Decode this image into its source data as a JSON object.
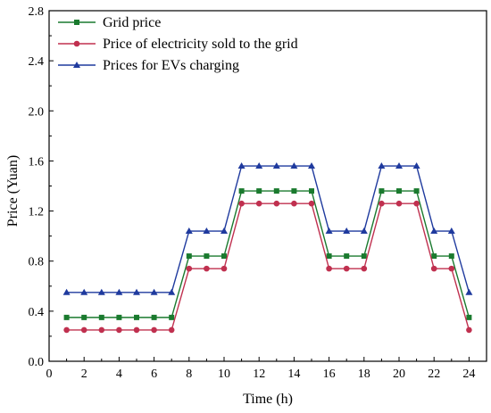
{
  "chart_data": {
    "type": "line",
    "xlabel": "Time (h)",
    "ylabel": "Price (Yuan)",
    "xlim": [
      0,
      25
    ],
    "ylim": [
      0,
      2.8
    ],
    "xticks": [
      0,
      2,
      4,
      6,
      8,
      10,
      12,
      14,
      16,
      18,
      20,
      22,
      24
    ],
    "xtick_labels": [
      "0",
      "2",
      "4",
      "6",
      "8",
      "10",
      "12",
      "14",
      "16",
      "18",
      "20",
      "22",
      "24"
    ],
    "yticks": [
      0,
      0.4,
      0.8,
      1.2,
      1.6,
      2.0,
      2.4,
      2.8
    ],
    "ytick_labels": [
      "0.0",
      "0.4",
      "0.8",
      "1.2",
      "1.6",
      "2.0",
      "2.4",
      "2.8"
    ],
    "grid": false,
    "legend_position": "top-left",
    "x": [
      1,
      2,
      3,
      4,
      5,
      6,
      7,
      8,
      9,
      10,
      11,
      12,
      13,
      14,
      15,
      16,
      17,
      18,
      19,
      20,
      21,
      22,
      23,
      24
    ],
    "series": [
      {
        "name": "Grid price",
        "color": "#1a7a2e",
        "marker": "square",
        "values": [
          0.35,
          0.35,
          0.35,
          0.35,
          0.35,
          0.35,
          0.35,
          0.84,
          0.84,
          0.84,
          1.36,
          1.36,
          1.36,
          1.36,
          1.36,
          0.84,
          0.84,
          0.84,
          1.36,
          1.36,
          1.36,
          0.84,
          0.84,
          0.35
        ]
      },
      {
        "name": "Price of electricity sold to the grid",
        "color": "#c0304f",
        "marker": "circle",
        "values": [
          0.25,
          0.25,
          0.25,
          0.25,
          0.25,
          0.25,
          0.25,
          0.74,
          0.74,
          0.74,
          1.26,
          1.26,
          1.26,
          1.26,
          1.26,
          0.74,
          0.74,
          0.74,
          1.26,
          1.26,
          1.26,
          0.74,
          0.74,
          0.25
        ]
      },
      {
        "name": "Prices for EVs charging",
        "color": "#1f3a9e",
        "marker": "triangle",
        "values": [
          0.55,
          0.55,
          0.55,
          0.55,
          0.55,
          0.55,
          0.55,
          1.04,
          1.04,
          1.04,
          1.56,
          1.56,
          1.56,
          1.56,
          1.56,
          1.04,
          1.04,
          1.04,
          1.56,
          1.56,
          1.56,
          1.04,
          1.04,
          0.55
        ]
      }
    ]
  }
}
